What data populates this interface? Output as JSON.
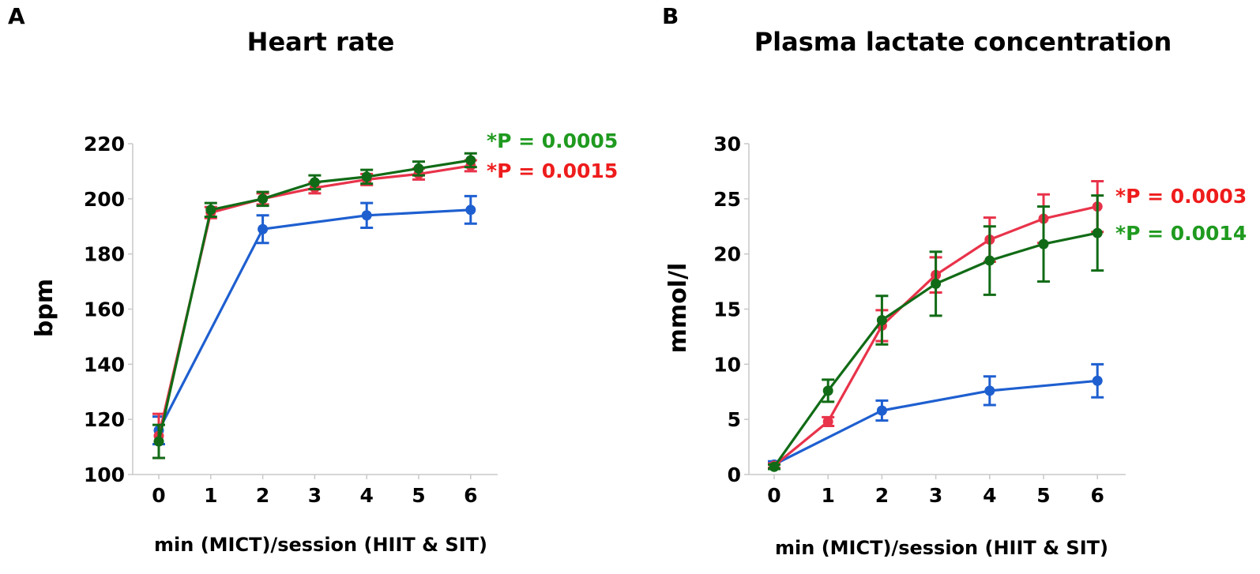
{
  "chart_data": [
    {
      "panel": "A",
      "type": "line",
      "title": "Heart rate",
      "xlabel": "min (MICT)/session (HIIT & SIT)",
      "ylabel": "bpm",
      "x": [
        0,
        1,
        2,
        3,
        4,
        5,
        6
      ],
      "xticks": [
        "0",
        "1",
        "2",
        "3",
        "4",
        "5",
        "6"
      ],
      "ylim": [
        100,
        220
      ],
      "yticks": [
        "100",
        "120",
        "140",
        "160",
        "180",
        "200",
        "220"
      ],
      "grid": false,
      "series": [
        {
          "name": "MICT",
          "color": "#1e5fd0",
          "x": [
            0,
            2,
            4,
            6
          ],
          "values": [
            116,
            189,
            194,
            196
          ],
          "errors": [
            5,
            5,
            4.5,
            5
          ]
        },
        {
          "name": "HIIT",
          "color": "#e8334a",
          "x": [
            0,
            1,
            2,
            3,
            4,
            5,
            6
          ],
          "values": [
            114,
            195,
            200,
            204,
            207,
            209,
            212
          ],
          "errors": [
            8,
            2,
            2,
            2,
            2,
            2,
            2
          ]
        },
        {
          "name": "SIT",
          "color": "#116b16",
          "x": [
            0,
            1,
            2,
            3,
            4,
            5,
            6
          ],
          "values": [
            112,
            196,
            200,
            206,
            208,
            211,
            214
          ],
          "errors": [
            6,
            2.5,
            2.5,
            2.5,
            2.5,
            2.5,
            2.5
          ]
        }
      ],
      "annotations": [
        {
          "text": "*P = 0.0005",
          "color": "#1f9a1f"
        },
        {
          "text": "*P = 0.0015",
          "color": "#ee1c1c"
        }
      ]
    },
    {
      "panel": "B",
      "type": "line",
      "title": "Plasma lactate concentration",
      "xlabel": "min (MICT)/session (HIIT & SIT)",
      "ylabel": "mmol/l",
      "x": [
        0,
        1,
        2,
        3,
        4,
        5,
        6
      ],
      "xticks": [
        "0",
        "1",
        "2",
        "3",
        "4",
        "5",
        "6"
      ],
      "ylim": [
        0,
        30
      ],
      "yticks": [
        "0",
        "5",
        "10",
        "15",
        "20",
        "25",
        "30"
      ],
      "grid": false,
      "series": [
        {
          "name": "MICT",
          "color": "#1e5fd0",
          "x": [
            0,
            2,
            4,
            6
          ],
          "values": [
            0.9,
            5.8,
            7.6,
            8.5
          ],
          "errors": [
            0.3,
            0.9,
            1.3,
            1.5
          ]
        },
        {
          "name": "HIIT",
          "color": "#e8334a",
          "x": [
            0,
            1,
            2,
            3,
            4,
            5,
            6
          ],
          "values": [
            0.8,
            4.8,
            13.5,
            18.1,
            21.3,
            23.2,
            24.3
          ],
          "errors": [
            0.2,
            0.4,
            1.4,
            1.6,
            2.0,
            2.2,
            2.3
          ]
        },
        {
          "name": "SIT",
          "color": "#116b16",
          "x": [
            0,
            1,
            2,
            3,
            4,
            5,
            6
          ],
          "values": [
            0.7,
            7.6,
            14.0,
            17.3,
            19.4,
            20.9,
            21.9
          ],
          "errors": [
            0.2,
            1.0,
            2.2,
            2.9,
            3.1,
            3.4,
            3.4
          ]
        }
      ],
      "annotations": [
        {
          "text": "*P = 0.0003",
          "color": "#ee1c1c"
        },
        {
          "text": "*P = 0.0014",
          "color": "#1f9a1f"
        }
      ]
    }
  ]
}
